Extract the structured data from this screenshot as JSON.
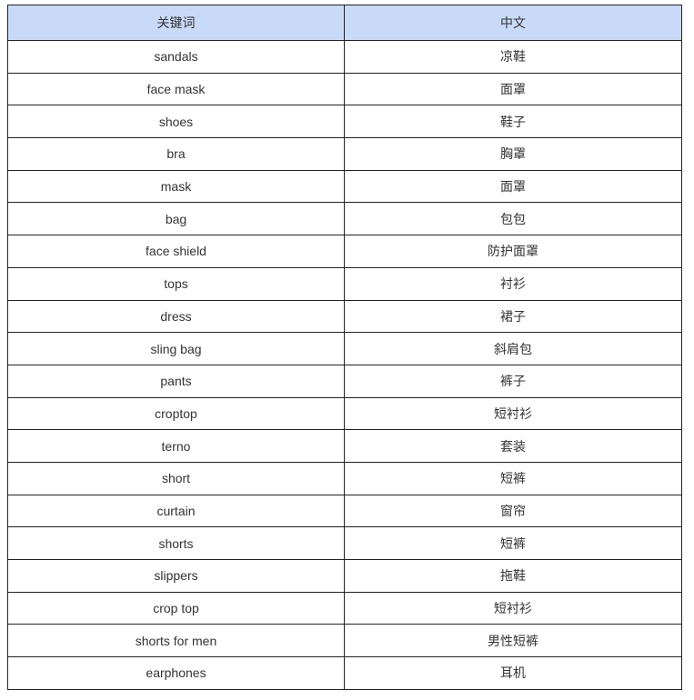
{
  "table": {
    "headers": [
      "关键词",
      "中文"
    ],
    "header_bg": "#c9daf8",
    "rows": [
      [
        "sandals",
        "凉鞋"
      ],
      [
        "face mask",
        "面罩"
      ],
      [
        "shoes",
        "鞋子"
      ],
      [
        "bra",
        "胸罩"
      ],
      [
        "mask",
        "面罩"
      ],
      [
        "bag",
        "包包"
      ],
      [
        "face shield",
        "防护面罩"
      ],
      [
        "tops",
        "衬衫"
      ],
      [
        "dress",
        "裙子"
      ],
      [
        "sling bag",
        "斜肩包"
      ],
      [
        "pants",
        "裤子"
      ],
      [
        "croptop",
        "短衬衫"
      ],
      [
        "terno",
        "套装"
      ],
      [
        "short",
        "短裤"
      ],
      [
        "curtain",
        "窗帘"
      ],
      [
        "shorts",
        "短裤"
      ],
      [
        "slippers",
        "拖鞋"
      ],
      [
        "crop top",
        "短衬衫"
      ],
      [
        "shorts for men",
        "男性短裤"
      ],
      [
        "earphones",
        "耳机"
      ]
    ]
  }
}
